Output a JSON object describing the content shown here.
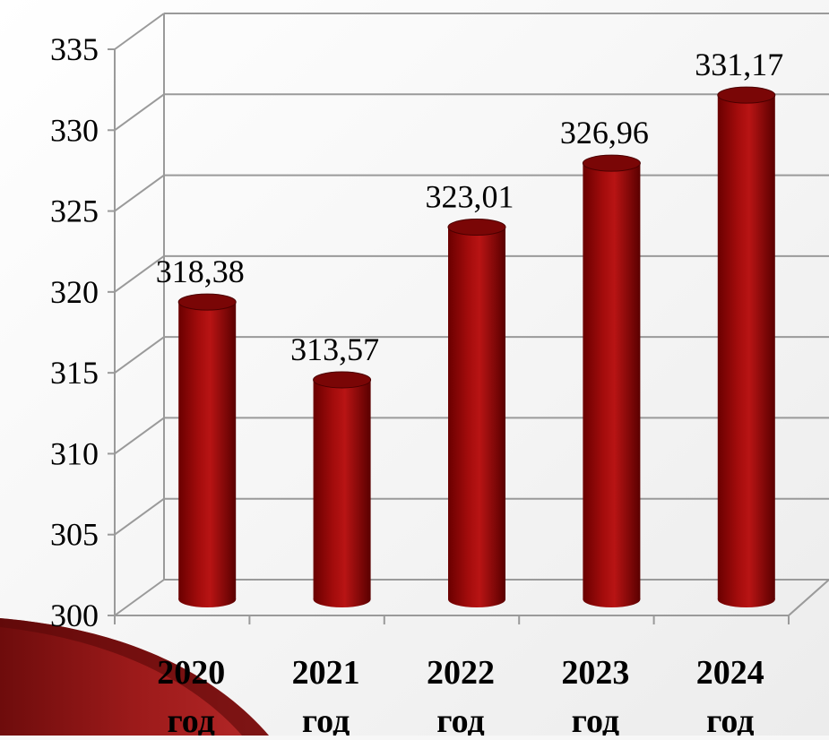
{
  "chart_data": {
    "type": "bar",
    "categories": [
      {
        "year": "2020",
        "unit": "год"
      },
      {
        "year": "2021",
        "unit": "год"
      },
      {
        "year": "2022",
        "unit": "год"
      },
      {
        "year": "2023",
        "unit": "год"
      },
      {
        "year": "2024",
        "unit": "год"
      }
    ],
    "values": [
      318.38,
      313.57,
      323.01,
      326.96,
      331.17
    ],
    "value_labels": [
      "318,38",
      "313,57",
      "323,01",
      "326,96",
      "331,17"
    ],
    "title": "",
    "xlabel": "",
    "ylabel": "",
    "ylim": [
      300,
      335
    ],
    "yticks": [
      "300",
      "305",
      "310",
      "315",
      "320",
      "325",
      "330",
      "335"
    ],
    "grid": true,
    "style": "3d-cylinder",
    "colors": {
      "bar_dark": "#5a0000",
      "bar_mid": "#9a0a0a",
      "bar_light": "#c01818",
      "bar_top": "#7a0606",
      "grid": "#9a9a9a",
      "background_swoosh": "#8b1414"
    }
  }
}
